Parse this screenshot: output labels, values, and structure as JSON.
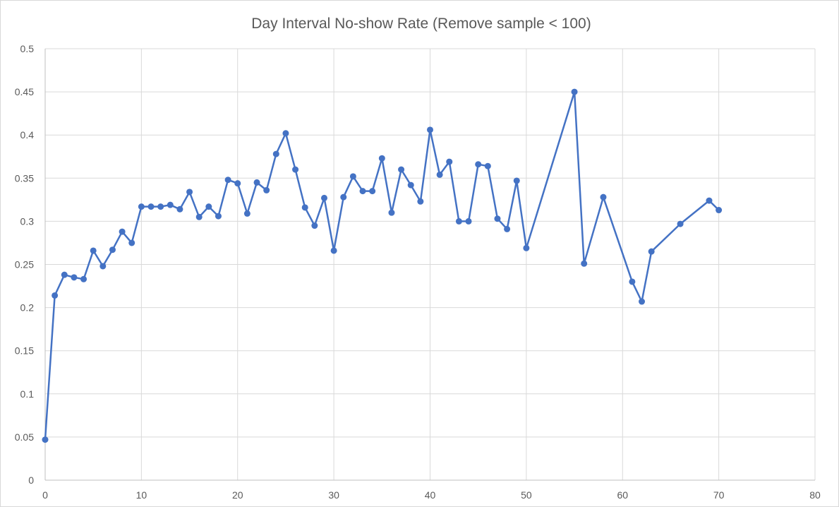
{
  "chart_data": {
    "type": "line",
    "title": "Day Interval No-show Rate (Remove sample < 100)",
    "xlabel": "",
    "ylabel": "",
    "xlim": [
      0,
      80
    ],
    "ylim": [
      0,
      0.5
    ],
    "x_ticks": [
      0,
      10,
      20,
      30,
      40,
      50,
      60,
      70,
      80
    ],
    "y_ticks": [
      0,
      0.05,
      0.1,
      0.15,
      0.2,
      0.25,
      0.3,
      0.35,
      0.4,
      0.45,
      0.5
    ],
    "grid": true,
    "legend": "none",
    "colors": {
      "series": "#4472c4",
      "grid": "#d9d9d9",
      "text": "#595959"
    },
    "series": [
      {
        "x": [
          0,
          1,
          2,
          3,
          4,
          5,
          6,
          7,
          8,
          9,
          10,
          11,
          12,
          13,
          14,
          15,
          16,
          17,
          18,
          19,
          20,
          21,
          22,
          23,
          24,
          25,
          26,
          27,
          28,
          29,
          30,
          31,
          32,
          33,
          34,
          35,
          36,
          37,
          38,
          39,
          40,
          41,
          42,
          43,
          44,
          45,
          46,
          47,
          48,
          49,
          50,
          55,
          56,
          58,
          61,
          62,
          63,
          66,
          69,
          70
        ],
        "y": [
          0.047,
          0.214,
          0.238,
          0.235,
          0.233,
          0.266,
          0.248,
          0.267,
          0.288,
          0.275,
          0.317,
          0.317,
          0.317,
          0.319,
          0.314,
          0.334,
          0.305,
          0.317,
          0.306,
          0.348,
          0.344,
          0.309,
          0.345,
          0.336,
          0.378,
          0.402,
          0.36,
          0.316,
          0.295,
          0.327,
          0.266,
          0.328,
          0.352,
          0.335,
          0.335,
          0.373,
          0.31,
          0.36,
          0.342,
          0.323,
          0.406,
          0.354,
          0.369,
          0.3,
          0.3,
          0.366,
          0.364,
          0.303,
          0.291,
          0.347,
          0.269,
          0.45,
          0.251,
          0.328,
          0.23,
          0.207,
          0.265,
          0.297,
          0.324,
          0.313
        ]
      }
    ]
  }
}
